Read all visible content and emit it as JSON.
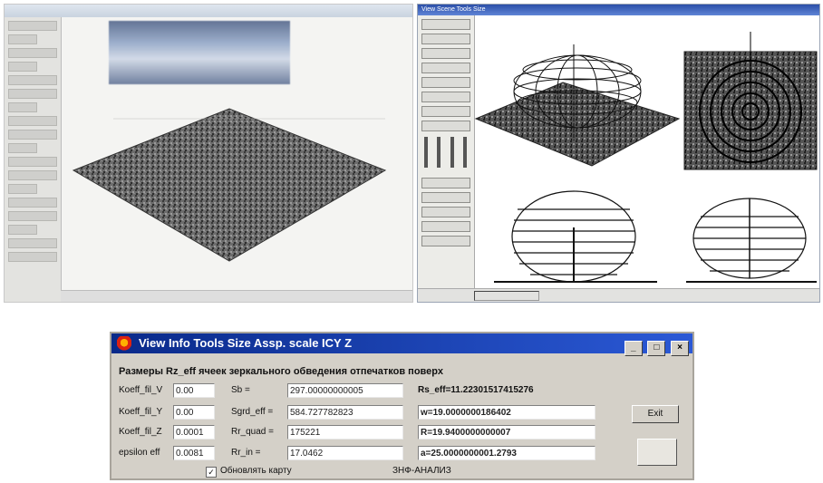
{
  "dialog": {
    "title": "View Info Tools Size Assp. scale ICY Z",
    "heading": "Размеры Rz_eff ячеек зеркального обведения отпечатков поверх",
    "rows": [
      {
        "label": "Koeff_fil_V",
        "value": "0.00",
        "label2": "Sb =",
        "value2": "297.00000000005",
        "value3": "Rs_eff=11.22301517415276"
      },
      {
        "label": "Koeff_fil_Y",
        "value": "0.00",
        "label2": "Sgrd_eff =",
        "value2": "584.727782823",
        "value3": "w=19.0000000186402"
      },
      {
        "label": "Koeff_fil_Z",
        "value": "0.0001",
        "label2": "Rr_quad =",
        "value2": "175221",
        "value3": "R=19.9400000000007"
      },
      {
        "label": "epsilon eff",
        "value": "0.0081",
        "label2": "Rr_in =",
        "value2": "17.0462",
        "value3": "a=25.0000000001.2793"
      }
    ],
    "exit_label": "Exit",
    "checkbox_label": "Обновлять карту",
    "checkbox_mark": "✓",
    "footnote": "ЗНФ-АНАЛИЗ",
    "title_buttons": [
      "_",
      "□",
      "×"
    ]
  },
  "right_window": {
    "title": "View Scene Tools Size"
  },
  "colors": {
    "dialog_titlebar": "#0a2a8a",
    "dialog_bg": "#d4d0c8"
  }
}
